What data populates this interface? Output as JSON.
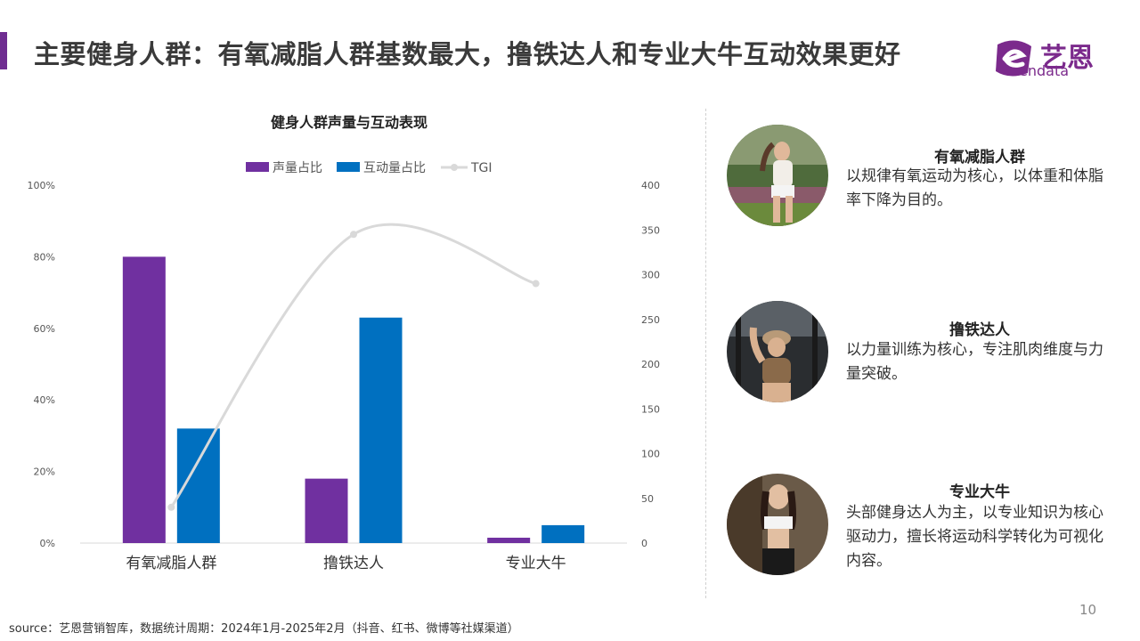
{
  "header": {
    "title": "主要健身人群：有氧减脂人群基数最大，撸铁达人和专业大牛互动效果更好",
    "accent_color": "#6f2d91"
  },
  "logo": {
    "text": "艺恩",
    "subtext": "endata",
    "color": "#7b2a8c"
  },
  "chart_data": {
    "type": "bar",
    "title": "健身人群声量与互动表现",
    "categories": [
      "有氧减脂人群",
      "撸铁达人",
      "专业大牛"
    ],
    "series": [
      {
        "name": "声量占比",
        "type": "bar",
        "axis": "left",
        "color": "#7030a0",
        "values": [
          80,
          18,
          1.5
        ]
      },
      {
        "name": "互动量占比",
        "type": "bar",
        "axis": "left",
        "color": "#0070c0",
        "values": [
          32,
          63,
          5
        ]
      },
      {
        "name": "TGI",
        "type": "line",
        "axis": "right",
        "color": "#d9d9d9",
        "values": [
          40,
          345,
          290
        ]
      }
    ],
    "y_left": {
      "ticks": [
        "0%",
        "20%",
        "40%",
        "60%",
        "80%",
        "100%"
      ],
      "min": 0,
      "max": 100
    },
    "y_right": {
      "ticks": [
        "0",
        "50",
        "100",
        "150",
        "200",
        "250",
        "300",
        "350",
        "400"
      ],
      "min": 0,
      "max": 400
    },
    "legend_position": "top"
  },
  "personas": [
    {
      "title": "有氧减脂人群",
      "desc": "以规律有氧运动为核心，以体重和体脂率下降为目的。"
    },
    {
      "title": "撸铁达人",
      "desc": "以力量训练为核心，专注肌肉维度与力量突破。"
    },
    {
      "title": "专业大牛",
      "desc": "头部健身达人为主，以专业知识为核心驱动力，擅长将运动科学转化为可视化内容。"
    }
  ],
  "footer": {
    "source": "source：艺恩营销智库，数据统计周期：2024年1月-2025年2月（抖音、红书、微博等社媒渠道）",
    "page_number": "10"
  }
}
